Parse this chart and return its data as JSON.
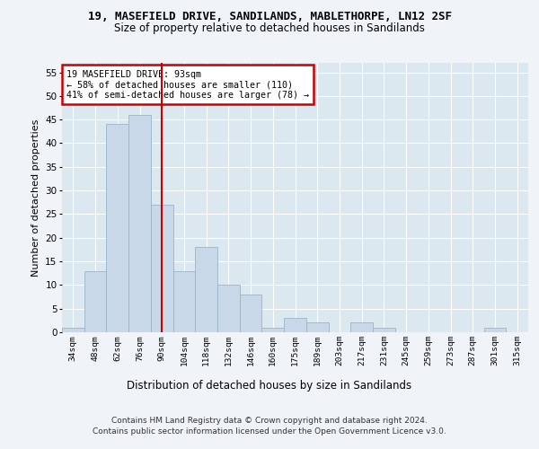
{
  "title1": "19, MASEFIELD DRIVE, SANDILANDS, MABLETHORPE, LN12 2SF",
  "title2": "Size of property relative to detached houses in Sandilands",
  "xlabel": "Distribution of detached houses by size in Sandilands",
  "ylabel": "Number of detached properties",
  "categories": [
    "34sqm",
    "48sqm",
    "62sqm",
    "76sqm",
    "90sqm",
    "104sqm",
    "118sqm",
    "132sqm",
    "146sqm",
    "160sqm",
    "175sqm",
    "189sqm",
    "203sqm",
    "217sqm",
    "231sqm",
    "245sqm",
    "259sqm",
    "273sqm",
    "287sqm",
    "301sqm",
    "315sqm"
  ],
  "values": [
    1,
    13,
    44,
    46,
    27,
    13,
    18,
    10,
    8,
    1,
    3,
    2,
    0,
    2,
    1,
    0,
    0,
    0,
    0,
    1,
    0
  ],
  "bar_color": "#c8d8e8",
  "bar_edge_color": "#9ab4c8",
  "red_line_x": 4.0,
  "annotation_text": "19 MASEFIELD DRIVE: 93sqm\n← 58% of detached houses are smaller (110)\n41% of semi-detached houses are larger (78) →",
  "annotation_box_color": "#ffffff",
  "annotation_box_edge": "#cc0000",
  "red_line_color": "#cc0000",
  "ylim": [
    0,
    57
  ],
  "yticks": [
    0,
    5,
    10,
    15,
    20,
    25,
    30,
    35,
    40,
    45,
    50,
    55
  ],
  "footer1": "Contains HM Land Registry data © Crown copyright and database right 2024.",
  "footer2": "Contains public sector information licensed under the Open Government Licence v3.0.",
  "fig_facecolor": "#f0f4f8",
  "plot_bg_color": "#dce8f0"
}
